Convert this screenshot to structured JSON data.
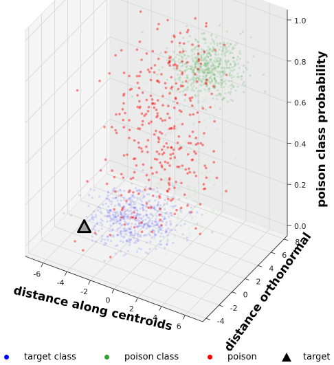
{
  "chart_data": {
    "type": "scatter",
    "projection": "3d",
    "title": "",
    "xlabel": "distance along centroids",
    "ylabel": "distance orthonormal",
    "zlabel": "poison class probability",
    "x_ticks": [
      "-6",
      "-4",
      "-2",
      "0",
      "2",
      "4",
      "6"
    ],
    "y_ticks": [
      "-4",
      "-2",
      "0",
      "2",
      "4",
      "6",
      "8"
    ],
    "z_ticks": [
      "0.0",
      "0.2",
      "0.4",
      "0.6",
      "0.8",
      "1.0"
    ],
    "xlim": [
      -7.5,
      7.5
    ],
    "ylim": [
      -4.5,
      8.5
    ],
    "zlim": [
      -0.05,
      1.05
    ],
    "grid": true,
    "legend_position": "bottom",
    "colors": {
      "target_class": "#0000ff",
      "poison_class": "#2ca02c",
      "poison": "#ff0000",
      "target": "#000000"
    },
    "series": [
      {
        "name": "target class",
        "marker": "dot",
        "color": "#0000ff",
        "cluster": {
          "x_center": -1.5,
          "x_spread": 1.6,
          "y_center": 1.5,
          "y_spread": 1.8,
          "z_center": 0.02,
          "z_spread": 0.03
        }
      },
      {
        "name": "poison class",
        "marker": "dot",
        "color": "#2ca02c",
        "cluster": {
          "x_center": 3.0,
          "x_spread": 1.3,
          "y_center": 4.5,
          "y_spread": 1.5,
          "z_center": 0.8,
          "z_spread": 0.05
        }
      },
      {
        "name": "poison",
        "marker": "dot",
        "color": "#ff0000",
        "cluster": {
          "x_center": -1.0,
          "x_spread": 1.8,
          "y_center": 4.0,
          "y_spread": 3.0,
          "z_min": 0.0,
          "z_max": 0.85
        }
      },
      {
        "name": "target",
        "marker": "triangle",
        "color": "#000000",
        "point": {
          "x": -5.0,
          "y": 0.0,
          "z": 0.0
        }
      }
    ]
  },
  "legend": {
    "items": [
      {
        "label": "target class",
        "color": "#0000ff",
        "marker": "dot"
      },
      {
        "label": "poison class",
        "color": "#2ca02c",
        "marker": "dot"
      },
      {
        "label": "poison",
        "color": "#ff0000",
        "marker": "dot"
      },
      {
        "label": "target",
        "color": "#000000",
        "marker": "triangle"
      }
    ]
  }
}
